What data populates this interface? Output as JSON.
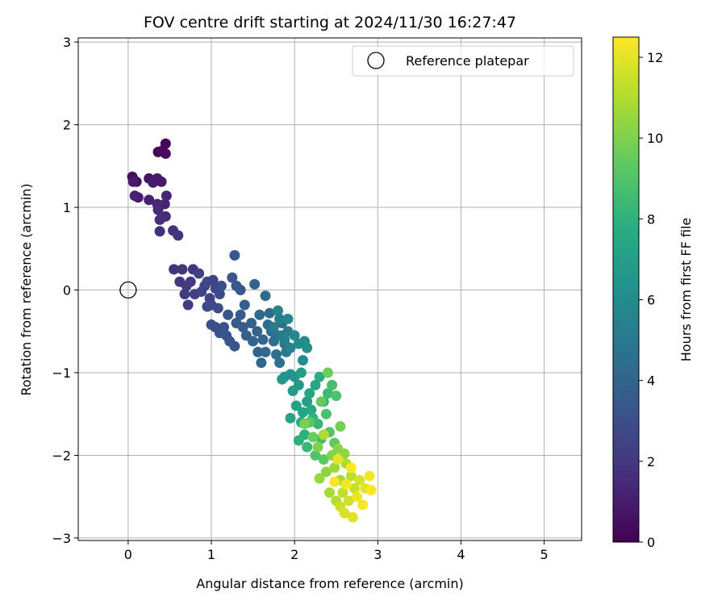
{
  "chart_data": {
    "type": "scatter",
    "title": "FOV centre drift starting at 2024/11/30 16:27:47",
    "xlabel": "Angular distance from reference (arcmin)",
    "ylabel": "Rotation from reference (arcmin)",
    "xlim": [
      -0.6,
      5.45
    ],
    "ylim": [
      -3.03,
      3.05
    ],
    "xticks": [
      "0",
      "1",
      "2",
      "3",
      "4",
      "5"
    ],
    "yticks": [
      "−3",
      "−2",
      "−1",
      "0",
      "1",
      "2",
      "3"
    ],
    "grid": true,
    "legend": {
      "position": "top-right",
      "entries": [
        "Reference platepar"
      ]
    },
    "reference_point": {
      "name": "Reference platepar",
      "x": 0,
      "y": 0
    },
    "colorbar": {
      "label": "Hours from first FF file",
      "range": [
        0,
        12.5
      ],
      "ticks": [
        "0",
        "2",
        "4",
        "6",
        "8",
        "10",
        "12"
      ],
      "colormap": "viridis"
    },
    "points": [
      {
        "x": 0.36,
        "y": 1.67,
        "t": 0.1
      },
      {
        "x": 0.45,
        "y": 1.77,
        "t": 0.2
      },
      {
        "x": 0.4,
        "y": 1.68,
        "t": 0.3
      },
      {
        "x": 0.45,
        "y": 1.65,
        "t": 0.4
      },
      {
        "x": 0.05,
        "y": 1.37,
        "t": 0.5
      },
      {
        "x": 0.1,
        "y": 1.31,
        "t": 0.6
      },
      {
        "x": 0.25,
        "y": 1.35,
        "t": 0.7
      },
      {
        "x": 0.35,
        "y": 1.35,
        "t": 0.8
      },
      {
        "x": 0.4,
        "y": 1.31,
        "t": 0.9
      },
      {
        "x": 0.3,
        "y": 1.3,
        "t": 1.0
      },
      {
        "x": 0.06,
        "y": 1.31,
        "t": 1.0
      },
      {
        "x": 0.12,
        "y": 1.12,
        "t": 1.1
      },
      {
        "x": 0.08,
        "y": 1.14,
        "t": 1.2
      },
      {
        "x": 0.25,
        "y": 1.09,
        "t": 1.2
      },
      {
        "x": 0.46,
        "y": 1.14,
        "t": 1.3
      },
      {
        "x": 0.44,
        "y": 1.04,
        "t": 1.3
      },
      {
        "x": 0.35,
        "y": 1.04,
        "t": 1.4
      },
      {
        "x": 0.36,
        "y": 0.97,
        "t": 1.5
      },
      {
        "x": 0.45,
        "y": 0.89,
        "t": 1.5
      },
      {
        "x": 0.38,
        "y": 0.85,
        "t": 1.6
      },
      {
        "x": 0.38,
        "y": 0.71,
        "t": 1.7
      },
      {
        "x": 0.54,
        "y": 0.72,
        "t": 1.7
      },
      {
        "x": 0.6,
        "y": 0.66,
        "t": 1.8
      },
      {
        "x": 0.55,
        "y": 0.25,
        "t": 1.8
      },
      {
        "x": 0.65,
        "y": 0.25,
        "t": 1.9
      },
      {
        "x": 0.78,
        "y": 0.25,
        "t": 2.0
      },
      {
        "x": 0.62,
        "y": 0.1,
        "t": 2.0
      },
      {
        "x": 0.7,
        "y": 0.05,
        "t": 2.1
      },
      {
        "x": 0.75,
        "y": 0.1,
        "t": 2.1
      },
      {
        "x": 0.68,
        "y": -0.05,
        "t": 2.2
      },
      {
        "x": 0.72,
        "y": -0.18,
        "t": 2.3
      },
      {
        "x": 0.8,
        "y": -0.05,
        "t": 2.3
      },
      {
        "x": 0.85,
        "y": 0.2,
        "t": 2.4
      },
      {
        "x": 0.92,
        "y": 0.05,
        "t": 2.4
      },
      {
        "x": 0.98,
        "y": -0.1,
        "t": 2.5
      },
      {
        "x": 0.88,
        "y": -0.02,
        "t": 2.5
      },
      {
        "x": 0.95,
        "y": 0.1,
        "t": 2.6
      },
      {
        "x": 1.02,
        "y": 0.12,
        "t": 2.6
      },
      {
        "x": 1.05,
        "y": 0.02,
        "t": 2.7
      },
      {
        "x": 0.95,
        "y": -0.2,
        "t": 2.7
      },
      {
        "x": 1.0,
        "y": -0.18,
        "t": 2.8
      },
      {
        "x": 1.1,
        "y": -0.05,
        "t": 2.8
      },
      {
        "x": 1.08,
        "y": -0.22,
        "t": 2.9
      },
      {
        "x": 1.12,
        "y": 0.05,
        "t": 2.9
      },
      {
        "x": 1.0,
        "y": -0.42,
        "t": 3.0
      },
      {
        "x": 1.05,
        "y": -0.45,
        "t": 3.0
      },
      {
        "x": 1.1,
        "y": -0.52,
        "t": 3.1
      },
      {
        "x": 1.15,
        "y": -0.45,
        "t": 3.1
      },
      {
        "x": 1.18,
        "y": -0.55,
        "t": 3.2
      },
      {
        "x": 1.22,
        "y": -0.62,
        "t": 3.2
      },
      {
        "x": 1.28,
        "y": -0.68,
        "t": 3.3
      },
      {
        "x": 1.2,
        "y": -0.3,
        "t": 3.3
      },
      {
        "x": 1.25,
        "y": 0.15,
        "t": 3.4
      },
      {
        "x": 1.3,
        "y": 0.05,
        "t": 3.4
      },
      {
        "x": 1.35,
        "y": 0.0,
        "t": 3.5
      },
      {
        "x": 1.28,
        "y": 0.42,
        "t": 3.5
      },
      {
        "x": 1.3,
        "y": -0.4,
        "t": 3.6
      },
      {
        "x": 1.35,
        "y": -0.3,
        "t": 3.6
      },
      {
        "x": 1.4,
        "y": -0.18,
        "t": 3.7
      },
      {
        "x": 1.38,
        "y": -0.45,
        "t": 3.7
      },
      {
        "x": 1.42,
        "y": -0.55,
        "t": 3.8
      },
      {
        "x": 1.48,
        "y": -0.4,
        "t": 3.8
      },
      {
        "x": 1.52,
        "y": 0.07,
        "t": 3.9
      },
      {
        "x": 1.55,
        "y": -0.5,
        "t": 3.9
      },
      {
        "x": 1.5,
        "y": -0.62,
        "t": 4.0
      },
      {
        "x": 1.56,
        "y": -0.75,
        "t": 4.0
      },
      {
        "x": 1.6,
        "y": -0.88,
        "t": 4.1
      },
      {
        "x": 1.62,
        "y": -0.6,
        "t": 4.1
      },
      {
        "x": 1.65,
        "y": -0.75,
        "t": 4.2
      },
      {
        "x": 1.58,
        "y": -0.3,
        "t": 4.2
      },
      {
        "x": 1.65,
        "y": -0.07,
        "t": 4.3
      },
      {
        "x": 1.7,
        "y": -0.28,
        "t": 4.3
      },
      {
        "x": 1.72,
        "y": -0.5,
        "t": 4.4
      },
      {
        "x": 1.68,
        "y": -0.42,
        "t": 4.4
      },
      {
        "x": 1.75,
        "y": -0.62,
        "t": 4.5
      },
      {
        "x": 1.78,
        "y": -0.78,
        "t": 4.5
      },
      {
        "x": 1.8,
        "y": -0.55,
        "t": 4.6
      },
      {
        "x": 1.85,
        "y": -0.4,
        "t": 4.6
      },
      {
        "x": 1.82,
        "y": -0.88,
        "t": 4.7
      },
      {
        "x": 1.88,
        "y": -0.65,
        "t": 4.8
      },
      {
        "x": 1.9,
        "y": -0.75,
        "t": 4.9
      },
      {
        "x": 1.85,
        "y": -0.55,
        "t": 5.0
      },
      {
        "x": 1.92,
        "y": -0.5,
        "t": 5.1
      },
      {
        "x": 1.75,
        "y": -0.45,
        "t": 5.2
      },
      {
        "x": 1.82,
        "y": -0.35,
        "t": 5.3
      },
      {
        "x": 1.88,
        "y": -0.6,
        "t": 5.4
      },
      {
        "x": 1.95,
        "y": -0.7,
        "t": 5.5
      },
      {
        "x": 1.8,
        "y": -0.25,
        "t": 5.6
      },
      {
        "x": 1.92,
        "y": -0.35,
        "t": 5.7
      },
      {
        "x": 2.0,
        "y": -0.55,
        "t": 5.8
      },
      {
        "x": 2.05,
        "y": -0.65,
        "t": 5.9
      },
      {
        "x": 2.1,
        "y": -0.85,
        "t": 6.0
      },
      {
        "x": 2.12,
        "y": -0.62,
        "t": 6.1
      },
      {
        "x": 2.15,
        "y": -0.7,
        "t": 6.2
      },
      {
        "x": 1.88,
        "y": -1.05,
        "t": 6.3
      },
      {
        "x": 1.95,
        "y": -1.02,
        "t": 6.4
      },
      {
        "x": 2.0,
        "y": -1.05,
        "t": 6.5
      },
      {
        "x": 1.85,
        "y": -1.08,
        "t": 6.6
      },
      {
        "x": 2.05,
        "y": -1.15,
        "t": 6.7
      },
      {
        "x": 1.98,
        "y": -1.22,
        "t": 6.8
      },
      {
        "x": 2.08,
        "y": -1.0,
        "t": 6.9
      },
      {
        "x": 2.15,
        "y": -1.35,
        "t": 7.0
      },
      {
        "x": 2.02,
        "y": -1.4,
        "t": 7.1
      },
      {
        "x": 2.1,
        "y": -1.48,
        "t": 7.2
      },
      {
        "x": 1.95,
        "y": -1.55,
        "t": 7.3
      },
      {
        "x": 2.18,
        "y": -1.25,
        "t": 7.4
      },
      {
        "x": 2.25,
        "y": -1.15,
        "t": 7.5
      },
      {
        "x": 2.2,
        "y": -1.45,
        "t": 7.6
      },
      {
        "x": 2.08,
        "y": -1.6,
        "t": 7.7
      },
      {
        "x": 2.3,
        "y": -1.05,
        "t": 7.8
      },
      {
        "x": 2.12,
        "y": -1.75,
        "t": 7.9
      },
      {
        "x": 2.05,
        "y": -1.82,
        "t": 8.0
      },
      {
        "x": 2.22,
        "y": -1.55,
        "t": 8.1
      },
      {
        "x": 2.35,
        "y": -1.35,
        "t": 8.2
      },
      {
        "x": 2.28,
        "y": -1.62,
        "t": 8.3
      },
      {
        "x": 2.15,
        "y": -1.9,
        "t": 8.4
      },
      {
        "x": 2.4,
        "y": -1.25,
        "t": 8.5
      },
      {
        "x": 2.32,
        "y": -1.8,
        "t": 8.6
      },
      {
        "x": 2.45,
        "y": -1.15,
        "t": 8.7
      },
      {
        "x": 2.38,
        "y": -1.5,
        "t": 8.8
      },
      {
        "x": 2.5,
        "y": -1.28,
        "t": 8.9
      },
      {
        "x": 2.25,
        "y": -2.0,
        "t": 9.0
      },
      {
        "x": 2.42,
        "y": -1.72,
        "t": 9.1
      },
      {
        "x": 2.18,
        "y": -1.6,
        "t": 9.2
      },
      {
        "x": 2.35,
        "y": -2.05,
        "t": 9.3
      },
      {
        "x": 2.48,
        "y": -1.85,
        "t": 9.4
      },
      {
        "x": 2.32,
        "y": -1.35,
        "t": 9.5
      },
      {
        "x": 2.22,
        "y": -1.78,
        "t": 9.6
      },
      {
        "x": 2.4,
        "y": -1.0,
        "t": 9.7
      },
      {
        "x": 2.55,
        "y": -1.65,
        "t": 9.8
      },
      {
        "x": 2.12,
        "y": -1.62,
        "t": 9.9
      },
      {
        "x": 2.28,
        "y": -1.9,
        "t": 10.0
      },
      {
        "x": 2.45,
        "y": -2.0,
        "t": 10.1
      },
      {
        "x": 2.52,
        "y": -1.92,
        "t": 10.2
      },
      {
        "x": 2.38,
        "y": -2.2,
        "t": 10.3
      },
      {
        "x": 2.6,
        "y": -1.98,
        "t": 10.4
      },
      {
        "x": 2.3,
        "y": -2.28,
        "t": 10.5
      },
      {
        "x": 2.48,
        "y": -2.15,
        "t": 10.6
      },
      {
        "x": 2.55,
        "y": -2.3,
        "t": 10.7
      },
      {
        "x": 2.42,
        "y": -2.45,
        "t": 10.8
      },
      {
        "x": 2.62,
        "y": -2.1,
        "t": 10.9
      },
      {
        "x": 2.35,
        "y": -1.75,
        "t": 11.0
      },
      {
        "x": 2.5,
        "y": -2.55,
        "t": 11.1
      },
      {
        "x": 2.68,
        "y": -2.25,
        "t": 11.2
      },
      {
        "x": 2.58,
        "y": -2.45,
        "t": 11.3
      },
      {
        "x": 2.72,
        "y": -2.4,
        "t": 11.4
      },
      {
        "x": 2.55,
        "y": -2.62,
        "t": 11.5
      },
      {
        "x": 2.65,
        "y": -2.55,
        "t": 11.6
      },
      {
        "x": 2.78,
        "y": -2.3,
        "t": 11.7
      },
      {
        "x": 2.6,
        "y": -2.7,
        "t": 11.8
      },
      {
        "x": 2.7,
        "y": -2.75,
        "t": 11.9
      },
      {
        "x": 2.85,
        "y": -2.4,
        "t": 12.0
      },
      {
        "x": 2.52,
        "y": -2.05,
        "t": 12.1
      },
      {
        "x": 2.75,
        "y": -2.5,
        "t": 12.2
      },
      {
        "x": 2.9,
        "y": -2.25,
        "t": 12.3
      },
      {
        "x": 2.62,
        "y": -2.35,
        "t": 12.3
      },
      {
        "x": 2.48,
        "y": -2.32,
        "t": 12.4
      },
      {
        "x": 2.82,
        "y": -2.6,
        "t": 12.4
      },
      {
        "x": 2.92,
        "y": -2.42,
        "t": 12.5
      },
      {
        "x": 2.68,
        "y": -2.15,
        "t": 12.5
      }
    ]
  }
}
